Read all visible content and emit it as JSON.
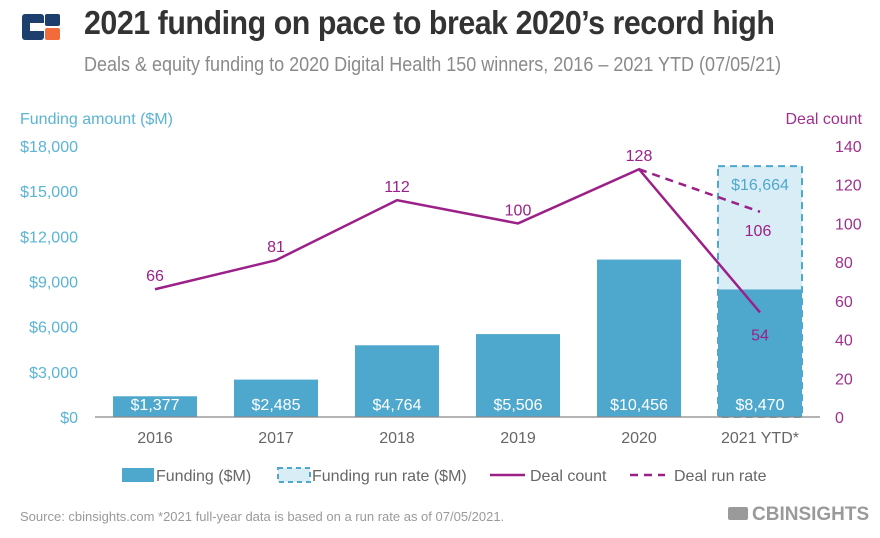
{
  "title": "2021 funding on pace to break 2020’s record high",
  "subtitle": "Deals & equity funding to 2020 Digital Health 150 winners, 2016 – 2021 YTD (07/05/21)",
  "footer": {
    "source": "Source: cbinsights.com  *2021 full-year data is based on a run rate as of 07/05/2021.",
    "brand": "CBINSIGHTS"
  },
  "colors": {
    "funding": "#4ea8ce",
    "run_rate_fill": "#d9edf6",
    "deal": "#9b2088",
    "left_axis": "#5ab4d6",
    "right_axis": "#a0308e"
  },
  "chart_data": {
    "type": "bar+line",
    "categories": [
      "2016",
      "2017",
      "2018",
      "2019",
      "2020",
      "2021 YTD*"
    ],
    "y_left": {
      "label": "Funding amount ($M)",
      "range": [
        0,
        18000
      ],
      "ticks": [
        "$0",
        "$3,000",
        "$6,000",
        "$9,000",
        "$12,000",
        "$15,000",
        "$18,000"
      ]
    },
    "y_right": {
      "label": "Deal count",
      "range": [
        0,
        140
      ],
      "ticks": [
        "0",
        "20",
        "40",
        "60",
        "80",
        "100",
        "120",
        "140"
      ]
    },
    "series": [
      {
        "name": "Funding ($M)",
        "type": "bar",
        "values": [
          1377,
          2485,
          4764,
          5506,
          10456,
          8470
        ],
        "labels": [
          "$1,377",
          "$2,485",
          "$4,764",
          "$5,506",
          "$10,456",
          "$8,470"
        ]
      },
      {
        "name": "Funding run rate ($M)",
        "type": "bar-dashed",
        "values": [
          null,
          null,
          null,
          null,
          null,
          16664
        ],
        "labels": [
          "",
          "",
          "",
          "",
          "",
          "$16,664"
        ]
      },
      {
        "name": "Deal count",
        "type": "line",
        "values": [
          66,
          81,
          112,
          100,
          128,
          54
        ],
        "labels": [
          "66",
          "81",
          "112",
          "100",
          "128",
          "54"
        ]
      },
      {
        "name": "Deal run rate",
        "type": "line-dashed",
        "values": [
          null,
          null,
          null,
          null,
          128,
          106
        ],
        "labels": [
          "",
          "",
          "",
          "",
          "",
          "106"
        ]
      }
    ],
    "legend": "bottom",
    "grid": false
  }
}
